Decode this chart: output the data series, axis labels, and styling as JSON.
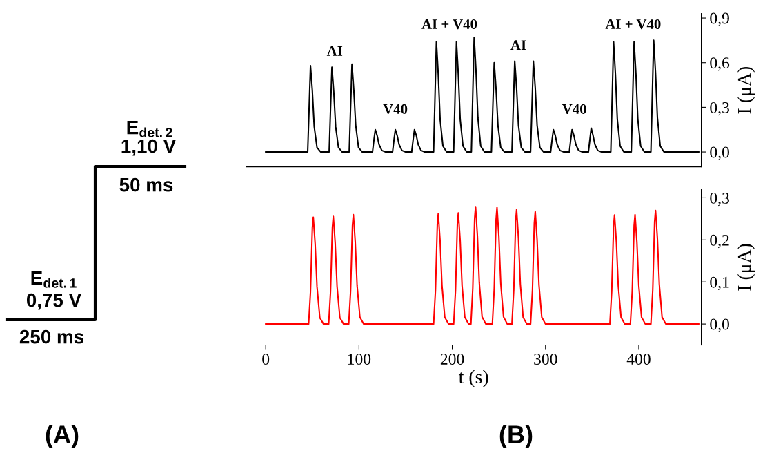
{
  "chart_data": [
    {
      "type": "other",
      "annotations": [
        "E$_{det.1}$",
        "0,75 V",
        "250 ms",
        "E$_{det.2}$",
        "1,10 V",
        "50 ms",
        "(A)"
      ]
    },
    {
      "type": "line",
      "tick_labels": "y",
      "ylabel": "I (μA)",
      "xlim": [
        -21,
        467
      ],
      "ylim": [
        -0.1,
        0.93
      ],
      "yticks": [
        {
          "value": 0,
          "label": "0,0"
        },
        {
          "value": 0.3,
          "label": "0,3"
        },
        {
          "value": 0.6,
          "label": "0,6"
        },
        {
          "value": 0.9,
          "label": "0,9"
        }
      ],
      "series": [
        {
          "color": "#000000",
          "x": [
            0,
            45,
            46.5,
            48,
            50,
            52,
            55,
            59,
            68,
            69.5,
            71,
            73,
            75,
            78,
            82,
            89.5,
            91,
            92.5,
            94.5,
            96.5,
            99.5,
            103.5,
            114.5,
            116,
            117.5,
            119.5,
            121.5,
            124.5,
            128.5,
            136,
            137.5,
            139,
            141,
            143,
            146,
            150,
            156.5,
            158,
            159.5,
            161.5,
            163.5,
            166.5,
            170.5,
            180,
            181.5,
            183,
            185,
            187,
            190,
            194,
            201.5,
            203,
            204.5,
            206.5,
            208.5,
            211.5,
            215.5,
            220.5,
            222,
            223.5,
            225.5,
            227.5,
            230.5,
            234.5,
            242,
            243.5,
            245,
            247,
            249,
            252,
            256,
            264,
            265.5,
            267,
            269,
            271,
            274,
            278,
            284,
            285.5,
            287,
            289,
            291,
            294,
            298,
            305.5,
            307,
            308.5,
            310.5,
            312.5,
            315.5,
            319.5,
            325.5,
            327,
            328.5,
            330.5,
            332.5,
            335.5,
            339.5,
            346,
            347.5,
            349,
            351,
            353,
            356,
            360,
            370,
            371.5,
            373,
            375,
            377,
            380,
            384,
            392,
            393.5,
            395,
            397,
            399,
            402,
            406,
            413,
            414.5,
            416,
            418,
            420,
            423,
            427,
            465
          ],
          "values": [
            0,
            0,
            0.29,
            0.58,
            0.41,
            0.17,
            0.03,
            0,
            0,
            0.29,
            0.57,
            0.4,
            0.17,
            0.03,
            0,
            0,
            0.3,
            0.59,
            0.41,
            0.18,
            0.03,
            0,
            0,
            0.08,
            0.15,
            0.11,
            0.05,
            0.01,
            0,
            0,
            0.08,
            0.15,
            0.11,
            0.05,
            0.01,
            0,
            0,
            0.08,
            0.15,
            0.11,
            0.05,
            0.01,
            0,
            0,
            0.37,
            0.74,
            0.52,
            0.22,
            0.04,
            0,
            0,
            0.37,
            0.74,
            0.52,
            0.22,
            0.04,
            0,
            0,
            0.39,
            0.77,
            0.54,
            0.23,
            0.04,
            0,
            0,
            0.3,
            0.6,
            0.42,
            0.18,
            0.03,
            0,
            0,
            0.31,
            0.61,
            0.43,
            0.18,
            0.03,
            0,
            0,
            0.31,
            0.61,
            0.43,
            0.18,
            0.03,
            0,
            0,
            0.08,
            0.15,
            0.11,
            0.05,
            0.01,
            0,
            0,
            0.08,
            0.15,
            0.11,
            0.05,
            0.01,
            0,
            0,
            0.08,
            0.16,
            0.11,
            0.05,
            0.01,
            0,
            0,
            0.37,
            0.74,
            0.52,
            0.22,
            0.04,
            0,
            0,
            0.37,
            0.74,
            0.52,
            0.22,
            0.04,
            0,
            0,
            0.38,
            0.75,
            0.53,
            0.23,
            0.04,
            0,
            0
          ]
        }
      ],
      "annotations": [
        "AI",
        "V40",
        "AI + V40",
        "AI",
        "V40",
        "AI + V40"
      ]
    },
    {
      "type": "line",
      "xlabel": "t (s)",
      "ylabel": "I (μA)",
      "xlim": [
        -21,
        467
      ],
      "ylim": [
        -0.05,
        0.32
      ],
      "xticks": [
        0,
        100,
        200,
        300,
        400
      ],
      "yticks": [
        {
          "value": 0,
          "label": "0,0"
        },
        {
          "value": 0.1,
          "label": "0,1"
        },
        {
          "value": 0.2,
          "label": "0,2"
        },
        {
          "value": 0.3,
          "label": "0,3"
        }
      ],
      "series": [
        {
          "color": "#ff0000",
          "x": [
            0,
            46,
            48,
            50,
            51,
            53,
            55,
            58,
            62,
            67.5,
            69.5,
            71.5,
            72.5,
            74.5,
            76.5,
            79.5,
            83.5,
            89,
            91,
            93,
            94,
            96,
            98,
            101,
            105,
            180,
            182,
            184,
            185,
            187,
            189,
            192,
            196,
            201.5,
            203.5,
            205.5,
            206.5,
            208.5,
            210.5,
            213.5,
            217.5,
            220,
            222,
            224,
            225,
            227,
            229,
            232,
            236,
            243,
            245,
            247,
            248,
            250,
            252,
            255,
            259,
            264,
            266,
            268,
            269,
            271,
            273,
            276,
            280,
            284,
            286,
            288,
            289,
            291,
            293,
            296,
            300,
            369,
            371,
            373,
            374,
            376,
            378,
            381,
            385,
            391,
            393,
            395,
            396,
            398,
            400,
            403,
            407,
            413,
            415,
            417,
            418,
            420,
            422,
            425,
            429,
            465
          ],
          "values": [
            0,
            0,
            0.076,
            0.229,
            0.254,
            0.191,
            0.089,
            0.015,
            0,
            0,
            0.077,
            0.23,
            0.256,
            0.192,
            0.09,
            0.015,
            0,
            0,
            0.078,
            0.234,
            0.26,
            0.195,
            0.091,
            0.016,
            0,
            0,
            0.079,
            0.236,
            0.262,
            0.197,
            0.092,
            0.016,
            0,
            0,
            0.079,
            0.238,
            0.264,
            0.198,
            0.092,
            0.016,
            0,
            0,
            0.084,
            0.251,
            0.279,
            0.209,
            0.098,
            0.017,
            0,
            0,
            0.083,
            0.249,
            0.277,
            0.208,
            0.097,
            0.017,
            0,
            0,
            0.082,
            0.245,
            0.272,
            0.204,
            0.095,
            0.016,
            0,
            0,
            0.08,
            0.24,
            0.267,
            0.2,
            0.093,
            0.016,
            0,
            0,
            0.078,
            0.233,
            0.259,
            0.194,
            0.091,
            0.016,
            0,
            0,
            0.078,
            0.234,
            0.26,
            0.195,
            0.091,
            0.016,
            0,
            0,
            0.081,
            0.243,
            0.27,
            0.203,
            0.095,
            0.016,
            0,
            0
          ]
        }
      ],
      "annotations": [
        "(B)"
      ]
    }
  ]
}
